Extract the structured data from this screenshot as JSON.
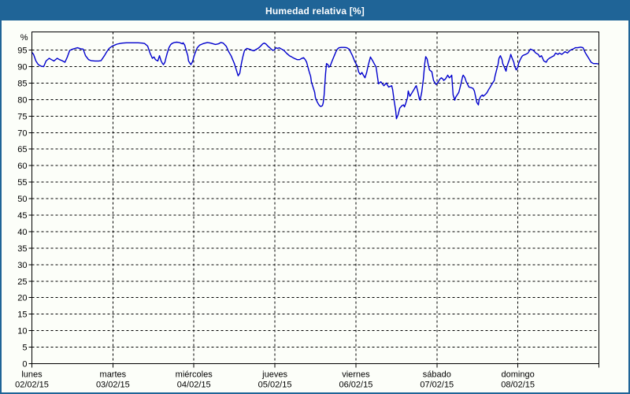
{
  "window": {
    "title": "Humedad relativa [%]"
  },
  "colors": {
    "titlebar_bg": "#1F6497",
    "titlebar_text": "#FFFFFF",
    "window_border": "#1F6497",
    "window_bg": "#FCFEF9"
  },
  "chart_data": {
    "type": "line",
    "title": "Humedad relativa [%]",
    "y_axis_unit": "%",
    "ylim": [
      0,
      100.5
    ],
    "y_ticks": [
      0,
      5,
      10,
      15,
      20,
      25,
      30,
      35,
      40,
      45,
      50,
      55,
      60,
      65,
      70,
      75,
      80,
      85,
      90,
      95
    ],
    "x_hours_total": 168,
    "x_days": [
      {
        "name": "lunes",
        "date": "02/02/15"
      },
      {
        "name": "martes",
        "date": "03/02/15"
      },
      {
        "name": "miércoles",
        "date": "04/02/15"
      },
      {
        "name": "jueves",
        "date": "05/02/15"
      },
      {
        "name": "viernes",
        "date": "06/02/15"
      },
      {
        "name": "sábado",
        "date": "07/02/15"
      },
      {
        "name": "domingo",
        "date": "08/02/15"
      }
    ],
    "grid": "dashed",
    "legend_position": "none",
    "colors": {
      "grid": "#000000",
      "frame": "#000000",
      "text": "#000000"
    },
    "series": [
      {
        "name": "Humedad relativa",
        "color": "#0000CD",
        "points": [
          [
            0,
            94.3
          ],
          [
            0.5,
            93.7
          ],
          [
            1.2,
            91.7
          ],
          [
            1.9,
            90.6
          ],
          [
            2.8,
            90.1
          ],
          [
            3.5,
            90
          ],
          [
            4.2,
            91.7
          ],
          [
            5.1,
            92.5
          ],
          [
            5.8,
            92.1
          ],
          [
            6.5,
            91.7
          ],
          [
            7.5,
            92.5
          ],
          [
            8.2,
            92.1
          ],
          [
            8.9,
            91.8
          ],
          [
            9.8,
            91.3
          ],
          [
            10.5,
            92.9
          ],
          [
            11.2,
            94.9
          ],
          [
            12.1,
            95.3
          ],
          [
            12.8,
            95.5
          ],
          [
            13.5,
            95.7
          ],
          [
            14.5,
            95.4
          ],
          [
            15.2,
            95.3
          ],
          [
            15.9,
            93.3
          ],
          [
            16.8,
            92.1
          ],
          [
            17.5,
            91.8
          ],
          [
            18.7,
            91.7
          ],
          [
            19.8,
            91.7
          ],
          [
            20.5,
            91.8
          ],
          [
            21.5,
            93.3
          ],
          [
            22.2,
            94.5
          ],
          [
            22.9,
            95.5
          ],
          [
            23.8,
            96.2
          ],
          [
            24.5,
            96.5
          ],
          [
            25.2,
            96.8
          ],
          [
            26.1,
            97
          ],
          [
            26.8,
            97.1
          ],
          [
            28,
            97.2
          ],
          [
            29.2,
            97.2
          ],
          [
            30.3,
            97.2
          ],
          [
            31.5,
            97.2
          ],
          [
            32.7,
            97.1
          ],
          [
            33.4,
            97
          ],
          [
            34.3,
            96.2
          ],
          [
            35,
            94.1
          ],
          [
            35.7,
            92.5
          ],
          [
            36.2,
            92.9
          ],
          [
            36.6,
            92.1
          ],
          [
            37.3,
            91.7
          ],
          [
            37.8,
            93.3
          ],
          [
            38.3,
            91.7
          ],
          [
            38.7,
            90.9
          ],
          [
            39,
            90.6
          ],
          [
            39.4,
            91.3
          ],
          [
            39.7,
            92.5
          ],
          [
            40.1,
            94.1
          ],
          [
            40.6,
            95.7
          ],
          [
            41.1,
            96.6
          ],
          [
            41.5,
            97
          ],
          [
            42.2,
            97.3
          ],
          [
            42.9,
            97.4
          ],
          [
            43.6,
            97.3
          ],
          [
            44.1,
            97.1
          ],
          [
            44.6,
            96.9
          ],
          [
            44.8,
            97.2
          ],
          [
            45.3,
            96.5
          ],
          [
            45.7,
            94.9
          ],
          [
            46.2,
            93.3
          ],
          [
            46.4,
            91.7
          ],
          [
            46.9,
            90.9
          ],
          [
            47.1,
            90.6
          ],
          [
            47.6,
            91.5
          ],
          [
            48.1,
            93.3
          ],
          [
            48.5,
            94.5
          ],
          [
            49,
            95.7
          ],
          [
            49.7,
            96.5
          ],
          [
            50.6,
            96.9
          ],
          [
            51.3,
            97.1
          ],
          [
            52,
            97.3
          ],
          [
            53,
            97.1
          ],
          [
            53.7,
            96.9
          ],
          [
            54.4,
            96.7
          ],
          [
            55.3,
            96.9
          ],
          [
            56,
            97.3
          ],
          [
            56.7,
            97.1
          ],
          [
            57.6,
            96.1
          ],
          [
            58.3,
            94.5
          ],
          [
            59,
            93.3
          ],
          [
            60,
            90.9
          ],
          [
            60.7,
            88.6
          ],
          [
            61.1,
            87.2
          ],
          [
            61.6,
            88
          ],
          [
            62.1,
            91
          ],
          [
            62.5,
            93
          ],
          [
            63,
            94.9
          ],
          [
            63.7,
            95.5
          ],
          [
            64.6,
            95.2
          ],
          [
            65.3,
            94.9
          ],
          [
            65.8,
            94.8
          ],
          [
            66.3,
            95.1
          ],
          [
            67,
            95.5
          ],
          [
            67.7,
            96.1
          ],
          [
            68.4,
            96.9
          ],
          [
            68.8,
            97.1
          ],
          [
            69.3,
            96.9
          ],
          [
            70,
            96.1
          ],
          [
            70.5,
            95.7
          ],
          [
            70.9,
            95.3
          ],
          [
            71.4,
            94.9
          ],
          [
            71.9,
            95.1
          ],
          [
            72.3,
            95.7
          ],
          [
            72.8,
            95.5
          ],
          [
            73.3,
            95.7
          ],
          [
            74,
            95.3
          ],
          [
            74.7,
            94.9
          ],
          [
            75.4,
            94.1
          ],
          [
            76.3,
            93.3
          ],
          [
            77,
            92.9
          ],
          [
            77.7,
            92.5
          ],
          [
            78.6,
            92.1
          ],
          [
            79.3,
            92.1
          ],
          [
            80,
            92.5
          ],
          [
            80.5,
            92.7
          ],
          [
            81,
            92.1
          ],
          [
            81.4,
            91.3
          ],
          [
            81.7,
            90.2
          ],
          [
            82.1,
            88.6
          ],
          [
            82.6,
            87
          ],
          [
            82.8,
            85.4
          ],
          [
            83.3,
            83.8
          ],
          [
            83.8,
            82.2
          ],
          [
            84,
            80.6
          ],
          [
            84.5,
            79.4
          ],
          [
            84.9,
            78.6
          ],
          [
            85.2,
            78.2
          ],
          [
            85.6,
            77.9
          ],
          [
            86.1,
            78.2
          ],
          [
            86.3,
            79
          ],
          [
            86.6,
            81.4
          ],
          [
            86.8,
            84.6
          ],
          [
            87,
            87.8
          ],
          [
            87.3,
            90.9
          ],
          [
            87.7,
            90.6
          ],
          [
            88,
            89.8
          ],
          [
            88.4,
            90.2
          ],
          [
            88.7,
            91
          ],
          [
            89.1,
            92.1
          ],
          [
            89.6,
            93.3
          ],
          [
            90.1,
            94.5
          ],
          [
            90.5,
            95.3
          ],
          [
            91,
            95.7
          ],
          [
            91.7,
            95.8
          ],
          [
            92.6,
            95.8
          ],
          [
            93.3,
            95.7
          ],
          [
            94,
            95.3
          ],
          [
            95,
            93.3
          ],
          [
            95.7,
            91.5
          ],
          [
            96.4,
            90.2
          ],
          [
            96.8,
            88.4
          ],
          [
            97.3,
            87.6
          ],
          [
            97.8,
            88.2
          ],
          [
            98.2,
            87.4
          ],
          [
            98.7,
            86.6
          ],
          [
            99.2,
            88.2
          ],
          [
            99.6,
            90.2
          ],
          [
            100.3,
            92.9
          ],
          [
            101,
            91.7
          ],
          [
            102,
            89.8
          ],
          [
            102.7,
            84.8
          ],
          [
            103.4,
            85.4
          ],
          [
            104.3,
            84.2
          ],
          [
            105,
            85
          ],
          [
            105.7,
            83.8
          ],
          [
            106.6,
            84.2
          ],
          [
            106.9,
            83
          ],
          [
            107.3,
            79.8
          ],
          [
            107.8,
            76.6
          ],
          [
            108,
            74.2
          ],
          [
            108.5,
            75.4
          ],
          [
            109,
            77.4
          ],
          [
            109.7,
            78.2
          ],
          [
            110.1,
            78.4
          ],
          [
            110.4,
            77.8
          ],
          [
            110.8,
            79
          ],
          [
            111.3,
            80.6
          ],
          [
            111.5,
            82.6
          ],
          [
            112,
            81
          ],
          [
            112.7,
            82.2
          ],
          [
            113.2,
            83
          ],
          [
            113.6,
            83.8
          ],
          [
            113.9,
            84.2
          ],
          [
            114.3,
            82.6
          ],
          [
            114.8,
            80.2
          ],
          [
            115,
            79.8
          ],
          [
            115.5,
            82.2
          ],
          [
            116,
            86.2
          ],
          [
            116.4,
            91
          ],
          [
            116.7,
            93
          ],
          [
            117.1,
            92.3
          ],
          [
            117.4,
            90.8
          ],
          [
            117.8,
            89
          ],
          [
            118.5,
            88.4
          ],
          [
            119,
            85.8
          ],
          [
            119.5,
            85
          ],
          [
            119.7,
            84.6
          ],
          [
            120.2,
            85
          ],
          [
            120.4,
            85.4
          ],
          [
            120.9,
            86.2
          ],
          [
            121.3,
            86.6
          ],
          [
            121.8,
            86.2
          ],
          [
            122,
            85.8
          ],
          [
            122.5,
            86.2
          ],
          [
            123,
            87
          ],
          [
            123.2,
            87.4
          ],
          [
            123.7,
            86.6
          ],
          [
            124.1,
            87
          ],
          [
            124.4,
            87.4
          ],
          [
            124.8,
            81.4
          ],
          [
            125.3,
            79.8
          ],
          [
            125.5,
            80.6
          ],
          [
            126,
            81.4
          ],
          [
            126.5,
            82.2
          ],
          [
            126.7,
            83
          ],
          [
            127.2,
            85
          ],
          [
            127.6,
            87
          ],
          [
            127.8,
            87.4
          ],
          [
            128.3,
            86.6
          ],
          [
            128.7,
            85.4
          ],
          [
            129,
            84.8
          ],
          [
            129.5,
            83.8
          ],
          [
            130.2,
            83.6
          ],
          [
            130.7,
            83.4
          ],
          [
            131.1,
            82.6
          ],
          [
            131.8,
            79.2
          ],
          [
            132.3,
            78.4
          ],
          [
            132.5,
            80
          ],
          [
            133,
            81
          ],
          [
            133.5,
            81.4
          ],
          [
            133.7,
            81
          ],
          [
            134.2,
            81.4
          ],
          [
            134.6,
            81.8
          ],
          [
            134.9,
            82.2
          ],
          [
            135.3,
            83
          ],
          [
            135.8,
            83.8
          ],
          [
            136,
            84.2
          ],
          [
            136.5,
            85
          ],
          [
            137,
            85.8
          ],
          [
            137.2,
            87
          ],
          [
            137.7,
            89
          ],
          [
            138.1,
            90.6
          ],
          [
            138.4,
            92.5
          ],
          [
            138.8,
            93.3
          ],
          [
            139.3,
            92.1
          ],
          [
            139.5,
            90.9
          ],
          [
            140,
            89.8
          ],
          [
            140.5,
            88.6
          ],
          [
            140.7,
            89.8
          ],
          [
            141.2,
            91.3
          ],
          [
            141.6,
            92.5
          ],
          [
            141.9,
            93.7
          ],
          [
            142.3,
            92.5
          ],
          [
            142.8,
            91.3
          ],
          [
            143,
            90.2
          ],
          [
            143.5,
            89
          ],
          [
            144,
            89.8
          ],
          [
            144.2,
            90.9
          ],
          [
            144.7,
            92.1
          ],
          [
            145.1,
            92.9
          ],
          [
            145.4,
            93.3
          ],
          [
            145.8,
            93.5
          ],
          [
            146.3,
            93.7
          ],
          [
            147,
            94.1
          ],
          [
            147.7,
            95.3
          ],
          [
            148.6,
            94.9
          ],
          [
            149.3,
            94.1
          ],
          [
            150,
            93.7
          ],
          [
            150.5,
            92.9
          ],
          [
            151,
            93.3
          ],
          [
            151.7,
            91.7
          ],
          [
            152.4,
            91.3
          ],
          [
            152.8,
            92.1
          ],
          [
            153.3,
            92.5
          ],
          [
            154,
            92.9
          ],
          [
            154.7,
            93.3
          ],
          [
            155.2,
            94.1
          ],
          [
            155.9,
            93.7
          ],
          [
            156.3,
            94.1
          ],
          [
            157,
            93.7
          ],
          [
            158,
            94.5
          ],
          [
            158.7,
            94.1
          ],
          [
            159.4,
            94.9
          ],
          [
            160.3,
            95.3
          ],
          [
            161,
            95.7
          ],
          [
            161.7,
            95.7
          ],
          [
            162.6,
            95.9
          ],
          [
            163.3,
            95.7
          ],
          [
            164,
            94.1
          ],
          [
            165,
            92.5
          ],
          [
            165.7,
            91.3
          ],
          [
            166.4,
            90.9
          ],
          [
            167.3,
            90.9
          ],
          [
            167.8,
            90.8
          ]
        ]
      }
    ]
  }
}
